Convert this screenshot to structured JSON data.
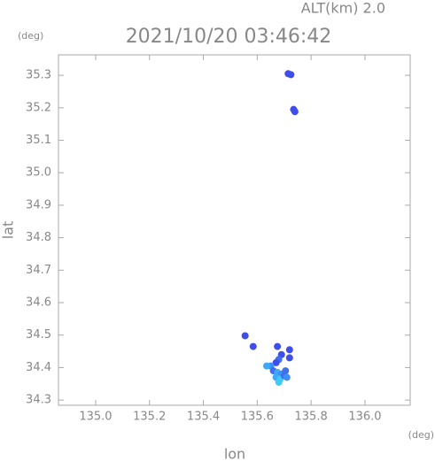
{
  "chart_data": {
    "type": "scatter",
    "title": "2021/10/20 03:46:42",
    "annotation": "ALT(km) 2.0",
    "y_unit": "(deg)",
    "x_unit": "(deg)",
    "x_label": "lon",
    "y_label": "lat",
    "xlim": [
      134.862,
      136.168
    ],
    "ylim": [
      34.284,
      35.363
    ],
    "xticks": [
      {
        "value": 135.0,
        "label": "135.0"
      },
      135.2,
      135.4,
      135.6,
      135.8,
      {
        "value": 136.0,
        "label": "136.0"
      }
    ],
    "yticks": [
      34.3,
      34.4,
      34.5,
      34.6,
      34.7,
      34.8,
      34.9,
      {
        "value": 35.0,
        "label": "35.0"
      },
      35.1,
      35.2,
      35.3
    ],
    "points": {
      "x": [
        135.715,
        135.725,
        135.735,
        135.74,
        135.555,
        135.585,
        135.675,
        135.69,
        135.72,
        135.72,
        135.68,
        135.67,
        135.65,
        135.635,
        135.66,
        135.675,
        135.69,
        135.705,
        135.67,
        135.685,
        135.7,
        135.68,
        135.71
      ],
      "y": [
        35.305,
        35.302,
        35.195,
        35.188,
        34.498,
        34.465,
        34.465,
        34.44,
        34.455,
        34.43,
        34.425,
        34.415,
        34.405,
        34.405,
        34.39,
        34.385,
        34.38,
        34.39,
        34.37,
        34.365,
        34.375,
        34.355,
        34.37
      ],
      "colors": [
        "#3f4ee8",
        "#3f4ee8",
        "#3f4ee8",
        "#3f4ee8",
        "#3f4ee8",
        "#3f4ee8",
        "#3f4ee8",
        "#3f4ee8",
        "#3f4ee8",
        "#3f4ee8",
        "#3f6ff0",
        "#3f4ee8",
        "#3f8ef5",
        "#3fa8f8",
        "#3f6ff0",
        "#3fa8f8",
        "#3f8ef5",
        "#3f6ff0",
        "#3fa8f8",
        "#3fc8fa",
        "#3f6ff0",
        "#3fc8fa",
        "#3f8ef5"
      ]
    }
  }
}
